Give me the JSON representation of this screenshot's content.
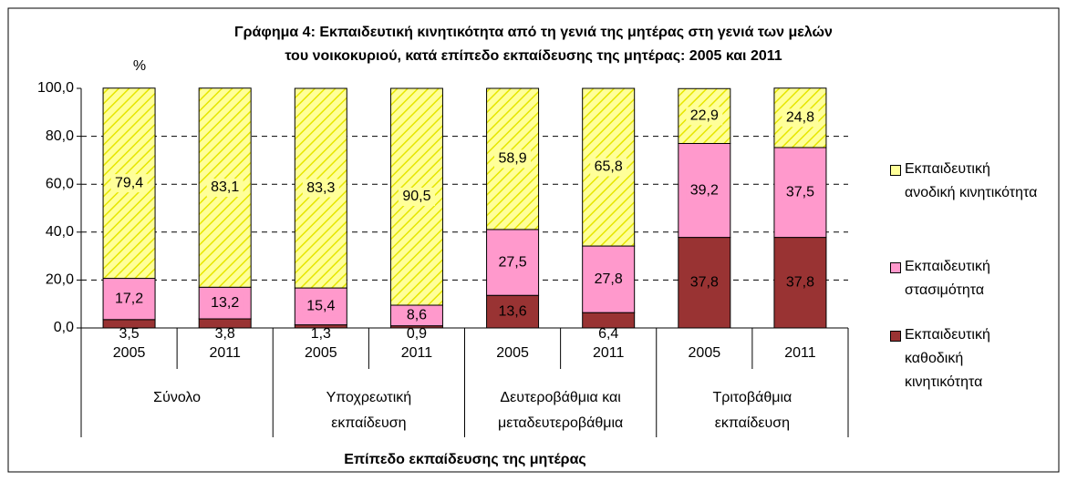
{
  "chart_data": {
    "type": "stacked_bar",
    "title": [
      "Γράφημα 4: Εκπαιδευτική κινητικότητα από τη γενιά της μητέρας στη γενιά των μελών",
      "του νοικοκυριού, κατά επίπεδο εκπαίδευσης της μητέρας: 2005 και 2011"
    ],
    "y_label": "%",
    "x_label": "Επίπεδο εκπαίδευσης της μητέρας",
    "categories": [
      "2005",
      "2011",
      "2005",
      "2011",
      "2005",
      "2011",
      "2005",
      "2011"
    ],
    "groups": [
      [
        "Σύνολο"
      ],
      [
        "Υποχρεωτική",
        "εκπαίδευση"
      ],
      [
        "Δευτεροβάθμια και",
        "μεταδευτεροβάθμια"
      ],
      [
        "Τριτοβάθμια",
        "εκπαίδευση"
      ]
    ],
    "ylim": [
      0,
      100
    ],
    "yticks": [
      {
        "value": 0,
        "label": "0,0"
      },
      {
        "value": 20,
        "label": "20,0"
      },
      {
        "value": 40,
        "label": "40,0"
      },
      {
        "value": 60,
        "label": "60,0"
      },
      {
        "value": 80,
        "label": "80,0"
      },
      {
        "value": 100,
        "label": "100,0"
      }
    ],
    "grid": true,
    "legend": "right",
    "series": [
      {
        "name": "Εκπαιδευτική καθοδική κινητικότητα",
        "color": "#993333",
        "values": [
          3.5,
          3.8,
          1.3,
          0.9,
          13.6,
          6.4,
          37.8,
          37.8
        ],
        "value_labels": [
          "3,5",
          "3,8",
          "1,3",
          "0,9",
          "13,6",
          "6,4",
          "37,8",
          "37,8"
        ]
      },
      {
        "name": "Εκπαιδευτική στασιμότητα",
        "color": "#ff99cc",
        "values": [
          17.2,
          13.2,
          15.4,
          8.6,
          27.5,
          27.8,
          39.2,
          37.5
        ],
        "value_labels": [
          "17,2",
          "13,2",
          "15,4",
          "8,6",
          "27,5",
          "27,8",
          "39,2",
          "37,5"
        ]
      },
      {
        "name": "Εκπαιδευτική ανοδική κινητικότητα",
        "color": "#ffff99",
        "values": [
          79.4,
          83.1,
          83.3,
          90.5,
          58.9,
          65.8,
          22.9,
          24.8
        ],
        "value_labels": [
          "79,4",
          "83,1",
          "83,3",
          "90,5",
          "58,9",
          "65,8",
          "22,9",
          "24,8"
        ]
      }
    ]
  }
}
